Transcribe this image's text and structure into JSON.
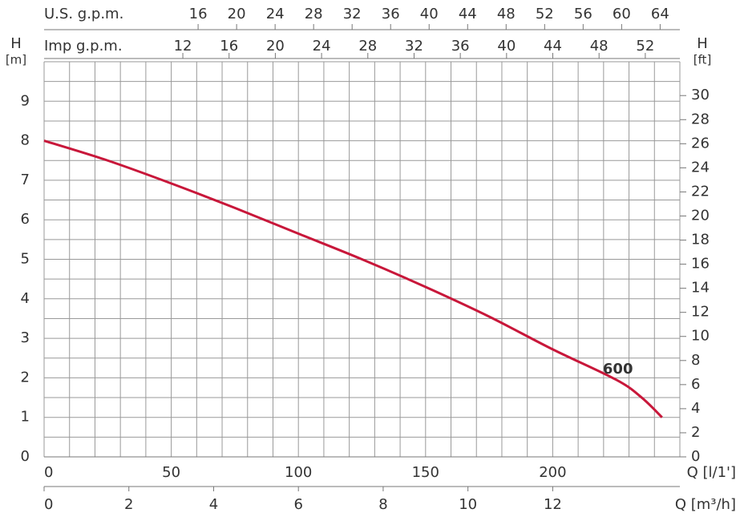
{
  "chart_data": {
    "type": "line",
    "series": [
      {
        "name": "600",
        "color": "#c8173a",
        "x": [
          0,
          25,
          50,
          75,
          100,
          125,
          150,
          175,
          200,
          225,
          235,
          243
        ],
        "values": [
          8,
          7.5,
          6.92,
          6.3,
          5.65,
          5.0,
          4.3,
          3.55,
          2.72,
          1.95,
          1.5,
          1.0
        ]
      }
    ],
    "xlabel": "Q [l/1']",
    "xlim": [
      0,
      250
    ],
    "xticks": [
      0,
      50,
      100,
      150,
      200
    ],
    "x_minor_ticks": [
      0,
      10,
      20,
      30,
      40,
      50,
      60,
      70,
      80,
      90,
      100,
      110,
      120,
      130,
      140,
      150,
      160,
      170,
      180,
      190,
      200,
      210,
      220,
      230,
      240,
      250
    ],
    "ylabel": "H",
    "ylabel_unit": "[m]",
    "ylim": [
      0,
      10
    ],
    "yticks": [
      0,
      1,
      2,
      3,
      4,
      5,
      6,
      7,
      8,
      9
    ],
    "y_minor_ticks": [
      0,
      0.5,
      1,
      1.5,
      2,
      2.5,
      3,
      3.5,
      4,
      4.5,
      5,
      5.5,
      6,
      6.5,
      7,
      7.5,
      8,
      8.5,
      9,
      9.5,
      10
    ],
    "y2label": "H",
    "y2label_unit": "[ft]",
    "y2lim": [
      0,
      32.81
    ],
    "y2ticks": [
      0,
      2,
      4,
      6,
      8,
      10,
      12,
      14,
      16,
      18,
      20,
      22,
      24,
      26,
      28,
      30
    ],
    "x2label": "Q [m³/h]",
    "x2lim": [
      0,
      15
    ],
    "x2ticks": [
      0,
      2,
      4,
      6,
      8,
      10,
      12
    ],
    "top_axes": [
      {
        "label": "U.S.  g.p.m.",
        "lim": [
          0,
          66.05
        ],
        "ticks": [
          16,
          20,
          24,
          28,
          32,
          36,
          40,
          44,
          48,
          52,
          56,
          60,
          64
        ]
      },
      {
        "label": "Imp  g.p.m.",
        "lim": [
          0,
          54.99
        ],
        "ticks": [
          12,
          16,
          20,
          24,
          28,
          32,
          36,
          40,
          44,
          48,
          52
        ]
      }
    ],
    "grid": true
  }
}
